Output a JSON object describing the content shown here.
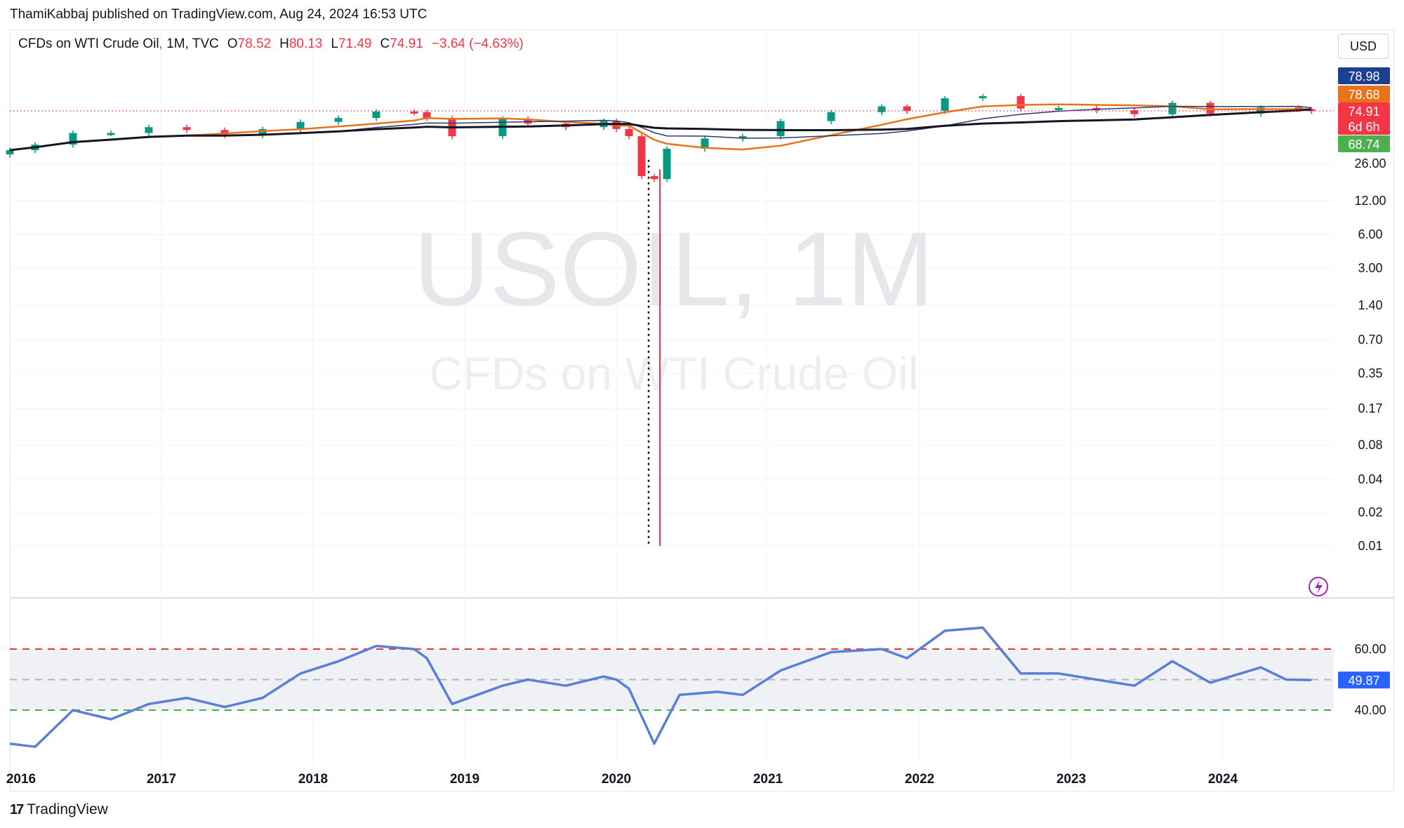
{
  "header": {
    "published": "ThamiKabbaj published on TradingView.com, Aug 24, 2024 16:53 UTC"
  },
  "legend": {
    "title": "CFDs on WTI Crude Oil, 1M, TVC",
    "o_label": "O",
    "o_value": "78.52",
    "h_label": "H",
    "h_value": "80.13",
    "l_label": "L",
    "l_value": "71.49",
    "c_label": "C",
    "c_value": "74.91",
    "change": "−3.64 (−4.63%)"
  },
  "currency_button": "USD",
  "watermark": {
    "symbol": "USOIL, 1M",
    "name": "CFDs on WTI Crude Oil"
  },
  "footer": {
    "brand": "TradingView",
    "logo_mark": "17"
  },
  "colors": {
    "up": "#089981",
    "down": "#f23645",
    "rsi_line": "#5b7fd6",
    "ma_black": "#131722",
    "ma_orange": "#e8731a",
    "ma_navy": "#2a3a6e",
    "overbought": "#e03a3a",
    "oversold": "#43b04a",
    "mid": "#b2b5be"
  },
  "chart_data": [
    {
      "type": "candlestick",
      "title": "USOIL, 1M",
      "scale": "log",
      "grid": true,
      "y_tick_labels": [
        "26.00",
        "12.00",
        "6.00",
        "3.00",
        "1.40",
        "0.70",
        "0.35",
        "0.17",
        "0.08",
        "0.04",
        "0.02",
        "0.01"
      ],
      "x_tick_labels": [
        "2016",
        "2017",
        "2018",
        "2019",
        "2020",
        "2021",
        "2022",
        "2023",
        "2024"
      ],
      "price_badges": [
        {
          "label": "78.98",
          "color": "#1c3f94"
        },
        {
          "label": "78.68",
          "color": "#e8731a"
        },
        {
          "label": "74.91",
          "color": "#f23645"
        },
        {
          "label": "6d 6h",
          "color": "#f23645"
        },
        {
          "label": "68.74",
          "color": "#4caf50"
        }
      ],
      "monthly_close_points": [
        [
          "2016-01",
          34
        ],
        [
          "2016-03",
          38
        ],
        [
          "2016-06",
          48
        ],
        [
          "2016-09",
          48
        ],
        [
          "2016-12",
          54
        ],
        [
          "2017-03",
          51
        ],
        [
          "2017-06",
          46
        ],
        [
          "2017-09",
          52
        ],
        [
          "2017-12",
          60
        ],
        [
          "2018-03",
          65
        ],
        [
          "2018-06",
          74
        ],
        [
          "2018-09",
          73
        ],
        [
          "2018-10",
          65
        ],
        [
          "2018-12",
          45
        ],
        [
          "2019-04",
          64
        ],
        [
          "2019-06",
          58
        ],
        [
          "2019-09",
          54
        ],
        [
          "2019-12",
          61
        ],
        [
          "2020-01",
          52
        ],
        [
          "2020-02",
          45
        ],
        [
          "2020-03",
          20
        ],
        [
          "2020-04",
          18.8
        ],
        [
          "2020-05",
          35
        ],
        [
          "2020-08",
          43
        ],
        [
          "2020-11",
          45
        ],
        [
          "2021-02",
          61
        ],
        [
          "2021-06",
          73
        ],
        [
          "2021-10",
          83
        ],
        [
          "2021-12",
          75
        ],
        [
          "2022-03",
          100
        ],
        [
          "2022-06",
          105
        ],
        [
          "2022-09",
          79
        ],
        [
          "2022-12",
          80
        ],
        [
          "2023-03",
          76
        ],
        [
          "2023-06",
          70
        ],
        [
          "2023-09",
          90
        ],
        [
          "2023-12",
          71
        ],
        [
          "2024-04",
          81
        ],
        [
          "2024-07",
          78
        ],
        [
          "2024-08",
          74.91
        ]
      ],
      "extreme_low": {
        "date": "2020-04",
        "value": 0.01
      }
    },
    {
      "type": "line",
      "indicator": "RSI",
      "reference_lines": [
        60,
        50,
        40
      ],
      "y_tick_labels": [
        "60.00",
        "40.00"
      ],
      "last_value_badge": "49.87",
      "x": [
        "2016-01",
        "2016-03",
        "2016-06",
        "2016-09",
        "2016-12",
        "2017-03",
        "2017-06",
        "2017-09",
        "2017-12",
        "2018-03",
        "2018-06",
        "2018-09",
        "2018-10",
        "2018-12",
        "2019-04",
        "2019-06",
        "2019-09",
        "2019-12",
        "2020-01",
        "2020-02",
        "2020-04",
        "2020-06",
        "2020-09",
        "2020-11",
        "2021-02",
        "2021-06",
        "2021-10",
        "2021-12",
        "2022-03",
        "2022-06",
        "2022-09",
        "2022-12",
        "2023-03",
        "2023-06",
        "2023-09",
        "2023-12",
        "2024-04",
        "2024-06",
        "2024-08"
      ],
      "values": [
        29,
        28,
        40,
        37,
        42,
        44,
        41,
        44,
        52,
        56,
        61,
        60,
        57,
        42,
        48,
        50,
        48,
        51,
        50,
        47,
        29,
        45,
        46,
        45,
        53,
        59,
        60,
        57,
        66,
        67,
        52,
        52,
        50,
        48,
        56,
        49,
        54,
        50,
        49.87
      ]
    }
  ]
}
